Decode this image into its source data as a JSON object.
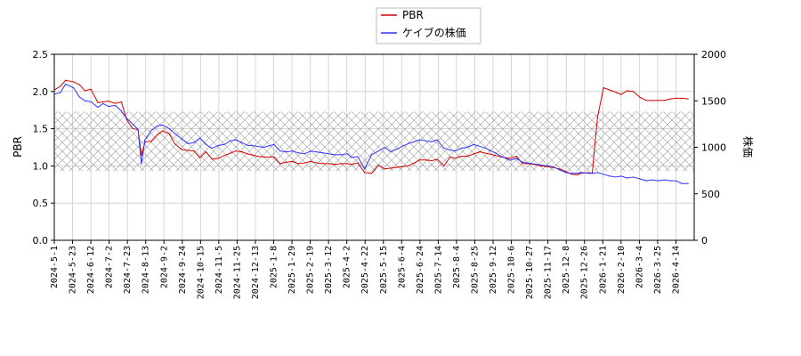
{
  "chart_data": {
    "type": "line",
    "legend": {
      "placement": "top-center",
      "entries": [
        "PBR",
        "ケイブの株価"
      ]
    },
    "y_left": {
      "label": "PBR",
      "lim": [
        0,
        2.5
      ],
      "ticks": [
        "0.0",
        "0.5",
        "1.0",
        "1.5",
        "2.0",
        "2.5"
      ]
    },
    "y_right": {
      "label": "株価",
      "lim": [
        0,
        2000
      ],
      "ticks": [
        "0",
        "500",
        "1000",
        "1500",
        "2000"
      ]
    },
    "x_tick_labels": [
      "2024-5-1",
      "2024-5-23",
      "2024-6-12",
      "2024-7-2",
      "2024-7-23",
      "2024-8-13",
      "2024-9-2",
      "2024-9-24",
      "2024-10-15",
      "2024-11-5",
      "2024-11-25",
      "2024-12-13",
      "2025-1-8",
      "2025-1-29",
      "2025-2-19",
      "2025-3-12",
      "2025-4-2",
      "2025-4-22",
      "2025-5-15",
      "2025-6-4",
      "2025-6-24",
      "2025-7-14",
      "2025-8-4",
      "2025-8-25",
      "2025-9-12",
      "2025-10-6",
      "2025-10-27",
      "2025-11-17",
      "2025-12-8",
      "2025-12-26",
      "2026-1-21",
      "2026-2-10",
      "2026-3-4",
      "2026-3-25",
      "2026-4-14"
    ],
    "band": {
      "pbr_range": [
        0.93,
        1.73
      ]
    },
    "grid": true,
    "series": [
      {
        "name": "PBR",
        "color": "#d40000",
        "axis": "left",
        "x": [
          "2024-5-1",
          "2024-5-8",
          "2024-5-14",
          "2024-5-23",
          "2024-5-30",
          "2024-6-5",
          "2024-6-12",
          "2024-6-20",
          "2024-6-26",
          "2024-7-2",
          "2024-7-10",
          "2024-7-17",
          "2024-7-23",
          "2024-7-30",
          "2024-8-5",
          "2024-8-9",
          "2024-8-13",
          "2024-8-20",
          "2024-8-27",
          "2024-9-2",
          "2024-9-10",
          "2024-9-16",
          "2024-9-24",
          "2024-10-1",
          "2024-10-8",
          "2024-10-15",
          "2024-10-22",
          "2024-10-29",
          "2024-11-5",
          "2024-11-12",
          "2024-11-19",
          "2024-11-25",
          "2024-12-2",
          "2024-12-9",
          "2024-12-13",
          "2024-12-20",
          "2024-12-27",
          "2025-1-8",
          "2025-1-15",
          "2025-1-22",
          "2025-1-29",
          "2025-2-5",
          "2025-2-12",
          "2025-2-19",
          "2025-2-26",
          "2025-3-5",
          "2025-3-12",
          "2025-3-19",
          "2025-3-26",
          "2025-4-2",
          "2025-4-7",
          "2025-4-14",
          "2025-4-22",
          "2025-4-30",
          "2025-5-8",
          "2025-5-15",
          "2025-5-22",
          "2025-5-29",
          "2025-6-4",
          "2025-6-11",
          "2025-6-18",
          "2025-6-24",
          "2025-7-1",
          "2025-7-8",
          "2025-7-14",
          "2025-7-22",
          "2025-7-29",
          "2025-8-4",
          "2025-8-11",
          "2025-8-18",
          "2025-8-25",
          "2025-9-1",
          "2025-9-8",
          "2025-9-12",
          "2025-9-19",
          "2025-9-26",
          "2025-10-6",
          "2025-10-13",
          "2025-10-20",
          "2025-10-27",
          "2025-11-3",
          "2025-11-10",
          "2025-11-17",
          "2025-11-24",
          "2025-12-1",
          "2025-12-8",
          "2025-12-15",
          "2025-12-22",
          "2025-12-26",
          "2026-1-5",
          "2026-1-8",
          "2026-1-14",
          "2026-1-21",
          "2026-1-28",
          "2026-2-4",
          "2026-2-10",
          "2026-2-17",
          "2026-2-24",
          "2026-3-4",
          "2026-3-11",
          "2026-3-18",
          "2026-3-25",
          "2026-4-1",
          "2026-4-8",
          "2026-4-14",
          "2026-4-21",
          "2026-4-28"
        ],
        "values": [
          2.02,
          2.07,
          2.15,
          2.13,
          2.09,
          2.01,
          2.03,
          1.85,
          1.86,
          1.87,
          1.84,
          1.86,
          1.62,
          1.5,
          1.49,
          1.14,
          1.32,
          1.33,
          1.42,
          1.47,
          1.43,
          1.3,
          1.22,
          1.21,
          1.2,
          1.11,
          1.19,
          1.09,
          1.1,
          1.14,
          1.17,
          1.2,
          1.19,
          1.16,
          1.15,
          1.13,
          1.12,
          1.12,
          1.03,
          1.05,
          1.06,
          1.03,
          1.04,
          1.06,
          1.04,
          1.03,
          1.03,
          1.02,
          1.03,
          1.03,
          1.02,
          1.04,
          0.91,
          0.9,
          1.01,
          0.96,
          0.97,
          0.98,
          0.99,
          1.0,
          1.04,
          1.08,
          1.08,
          1.07,
          1.09,
          1.0,
          1.12,
          1.1,
          1.13,
          1.13,
          1.16,
          1.19,
          1.17,
          1.16,
          1.14,
          1.12,
          1.1,
          1.13,
          1.03,
          1.03,
          1.02,
          1.0,
          0.99,
          0.98,
          0.96,
          0.93,
          0.89,
          0.88,
          0.9,
          0.91,
          0.9,
          1.65,
          2.05,
          2.02,
          1.99,
          1.96,
          2.01,
          2.0,
          1.92,
          1.88,
          1.88,
          1.88,
          1.88,
          1.9,
          1.91,
          1.91,
          1.9
        ]
      },
      {
        "name": "ケイブの株価",
        "color": "#3333ff",
        "axis": "right",
        "x": [
          "2024-5-1",
          "2024-5-8",
          "2024-5-14",
          "2024-5-23",
          "2024-5-30",
          "2024-6-5",
          "2024-6-12",
          "2024-6-20",
          "2024-6-26",
          "2024-7-2",
          "2024-7-10",
          "2024-7-17",
          "2024-7-23",
          "2024-7-30",
          "2024-8-5",
          "2024-8-9",
          "2024-8-13",
          "2024-8-20",
          "2024-8-27",
          "2024-9-2",
          "2024-9-10",
          "2024-9-16",
          "2024-9-24",
          "2024-10-1",
          "2024-10-8",
          "2024-10-15",
          "2024-10-22",
          "2024-10-29",
          "2024-11-5",
          "2024-11-12",
          "2024-11-19",
          "2024-11-25",
          "2024-12-2",
          "2024-12-9",
          "2024-12-13",
          "2024-12-20",
          "2024-12-27",
          "2025-1-8",
          "2025-1-15",
          "2025-1-22",
          "2025-1-29",
          "2025-2-5",
          "2025-2-12",
          "2025-2-19",
          "2025-2-26",
          "2025-3-5",
          "2025-3-12",
          "2025-3-19",
          "2025-3-26",
          "2025-4-2",
          "2025-4-7",
          "2025-4-14",
          "2025-4-22",
          "2025-4-30",
          "2025-5-8",
          "2025-5-15",
          "2025-5-22",
          "2025-5-29",
          "2025-6-4",
          "2025-6-11",
          "2025-6-18",
          "2025-6-24",
          "2025-7-1",
          "2025-7-8",
          "2025-7-14",
          "2025-7-22",
          "2025-7-29",
          "2025-8-4",
          "2025-8-11",
          "2025-8-18",
          "2025-8-25",
          "2025-9-1",
          "2025-9-8",
          "2025-9-12",
          "2025-9-19",
          "2025-9-26",
          "2025-10-6",
          "2025-10-13",
          "2025-10-20",
          "2025-10-27",
          "2025-11-3",
          "2025-11-10",
          "2025-11-17",
          "2025-11-24",
          "2025-12-1",
          "2025-12-8",
          "2025-12-15",
          "2025-12-22",
          "2025-12-26",
          "2026-1-5",
          "2026-1-8",
          "2026-1-14",
          "2026-1-21",
          "2026-1-28",
          "2026-2-4",
          "2026-2-10",
          "2026-2-17",
          "2026-2-24",
          "2026-3-4",
          "2026-3-11",
          "2026-3-18",
          "2026-3-25",
          "2026-4-1",
          "2026-4-8",
          "2026-4-14",
          "2026-4-21",
          "2026-4-28"
        ],
        "values": [
          1570,
          1590,
          1680,
          1640,
          1540,
          1500,
          1490,
          1430,
          1470,
          1440,
          1450,
          1390,
          1310,
          1250,
          1190,
          820,
          1080,
          1180,
          1230,
          1240,
          1200,
          1150,
          1090,
          1040,
          1050,
          1100,
          1030,
          990,
          1020,
          1030,
          1070,
          1080,
          1050,
          1020,
          1020,
          1010,
          1000,
          1030,
          960,
          950,
          960,
          940,
          930,
          960,
          950,
          940,
          930,
          920,
          920,
          930,
          890,
          900,
          770,
          920,
          960,
          1000,
          950,
          980,
          1010,
          1040,
          1060,
          1080,
          1070,
          1060,
          1080,
          990,
          970,
          960,
          990,
          1000,
          1030,
          1010,
          990,
          970,
          940,
          900,
          860,
          880,
          840,
          830,
          820,
          810,
          800,
          790,
          760,
          730,
          720,
          720,
          730,
          720,
          720,
          730,
          710,
          690,
          680,
          690,
          670,
          680,
          660,
          640,
          650,
          640,
          650,
          640,
          640,
          610,
          610
        ]
      }
    ]
  }
}
